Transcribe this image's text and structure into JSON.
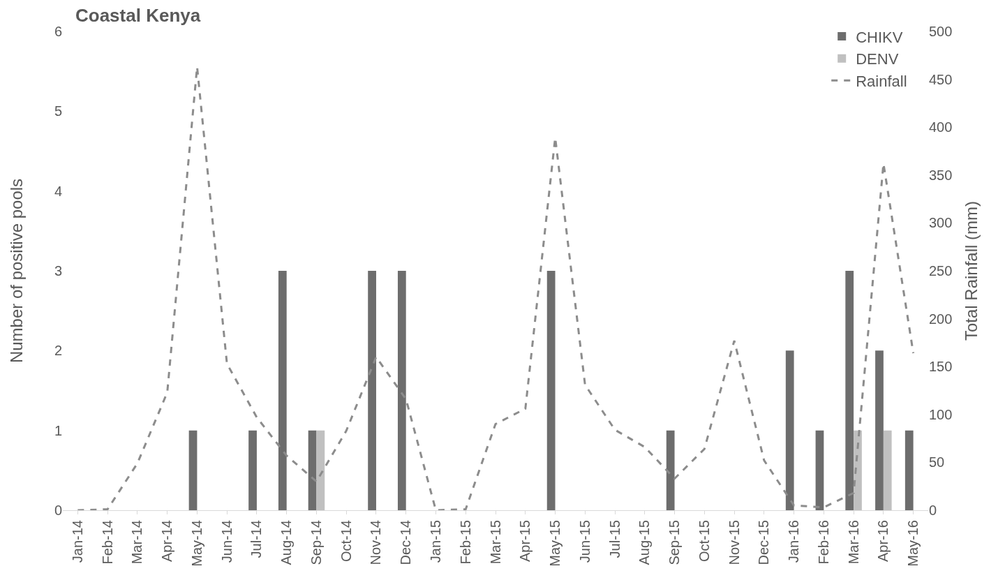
{
  "chart_data": {
    "type": "bar",
    "title": "Coastal Kenya",
    "ylabel": "Number of positive pools",
    "y2label": "Total Rainfall (mm)",
    "categories": [
      "Jan-14",
      "Feb-14",
      "Mar-14",
      "Apr-14",
      "May-14",
      "Jun-14",
      "Jul-14",
      "Aug-14",
      "Sep-14",
      "Oct-14",
      "Nov-14",
      "Dec-14",
      "Jan-15",
      "Feb-15",
      "Mar-15",
      "Apr-15",
      "May-15",
      "Jun-15",
      "Jul-15",
      "Aug-15",
      "Sep-15",
      "Oct-15",
      "Nov-15",
      "Dec-15",
      "Jan-16",
      "Feb-16",
      "Mar-16",
      "Apr-16",
      "May-16"
    ],
    "series": [
      {
        "name": "CHIKV",
        "color": "#6d6d6d",
        "values": [
          0,
          0,
          0,
          0,
          1,
          0,
          1,
          3,
          1,
          0,
          3,
          3,
          0,
          0,
          0,
          0,
          3,
          0,
          0,
          0,
          1,
          0,
          0,
          0,
          2,
          1,
          3,
          2,
          1
        ]
      },
      {
        "name": "DENV",
        "color": "#c0c0c0",
        "values": [
          0,
          0,
          0,
          0,
          0,
          0,
          0,
          0,
          1,
          0,
          0,
          0,
          0,
          0,
          0,
          0,
          0,
          0,
          0,
          0,
          0,
          0,
          0,
          0,
          0,
          0,
          1,
          1,
          0
        ]
      },
      {
        "name": "Rainfall",
        "type": "line",
        "axis": "y2",
        "color": "#8c8c8c",
        "line_style": "dashed",
        "values": [
          0,
          1,
          49,
          123,
          463,
          153,
          97,
          57,
          30,
          83,
          160,
          116,
          0,
          1,
          90,
          106,
          389,
          131,
          84,
          66,
          33,
          64,
          177,
          52,
          5,
          3,
          18,
          362,
          164
        ]
      }
    ],
    "ylim": [
      0,
      6
    ],
    "yticks": [
      0,
      1,
      2,
      3,
      4,
      5,
      6
    ],
    "y2lim": [
      0,
      500
    ],
    "y2ticks": [
      0,
      50,
      100,
      150,
      200,
      250,
      300,
      350,
      400,
      450,
      500
    ],
    "grid": false,
    "legend": "top right",
    "marker": "none"
  }
}
